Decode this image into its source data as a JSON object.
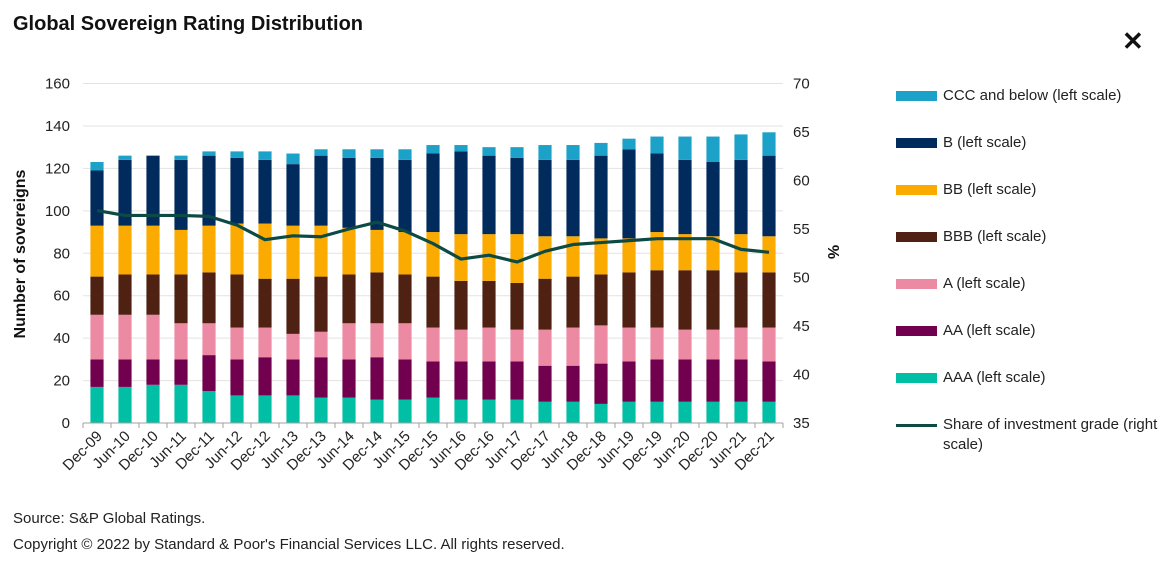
{
  "header": {
    "title": "Global Sovereign Rating Distribution",
    "close_icon": "close-x-icon"
  },
  "footer": {
    "source": "Source: S&P Global Ratings.",
    "copyright": "Copyright © 2022 by Standard & Poor's Financial Services LLC. All rights reserved."
  },
  "chart_data": {
    "type": "bar",
    "subtype": "stacked-bar-with-line",
    "title": "Global Sovereign Rating Distribution",
    "xlabel": "",
    "ylabel": "Number of sovereigns",
    "y2label": "%",
    "ylim": [
      0,
      160
    ],
    "y2lim": [
      35,
      70
    ],
    "yticks": [
      0,
      20,
      40,
      60,
      80,
      100,
      120,
      140,
      160
    ],
    "y2ticks": [
      35,
      40,
      45,
      50,
      55,
      60,
      65,
      70
    ],
    "grid": true,
    "legend_position": "right",
    "categories": [
      "Dec-09",
      "Jun-10",
      "Dec-10",
      "Jun-11",
      "Dec-11",
      "Jun-12",
      "Dec-12",
      "Jun-13",
      "Dec-13",
      "Jun-14",
      "Dec-14",
      "Jun-15",
      "Dec-15",
      "Jun-16",
      "Dec-16",
      "Jun-17",
      "Dec-17",
      "Jun-18",
      "Dec-18",
      "Jun-19",
      "Dec-19",
      "Jun-20",
      "Dec-20",
      "Jun-21",
      "Dec-21"
    ],
    "series": [
      {
        "name": "AAA (left scale)",
        "key": "aaa",
        "color": "#00BFA5",
        "axis": "left",
        "values": [
          17,
          17,
          18,
          18,
          15,
          13,
          13,
          13,
          12,
          12,
          11,
          11,
          12,
          11,
          11,
          11,
          10,
          10,
          9,
          10,
          10,
          10,
          10,
          10,
          10
        ]
      },
      {
        "name": "AA (left scale)",
        "key": "aa",
        "color": "#71004F",
        "axis": "left",
        "values": [
          13,
          13,
          12,
          12,
          17,
          17,
          18,
          17,
          19,
          18,
          20,
          19,
          17,
          18,
          18,
          18,
          17,
          17,
          19,
          19,
          20,
          20,
          20,
          20,
          19
        ]
      },
      {
        "name": "A (left scale)",
        "key": "a",
        "color": "#EC89A3",
        "axis": "left",
        "values": [
          21,
          21,
          21,
          17,
          15,
          15,
          14,
          12,
          12,
          17,
          16,
          17,
          16,
          15,
          16,
          15,
          17,
          18,
          18,
          16,
          15,
          14,
          14,
          15,
          16
        ]
      },
      {
        "name": "BBB (left scale)",
        "key": "bbb",
        "color": "#4F2112",
        "axis": "left",
        "values": [
          18,
          19,
          19,
          23,
          24,
          25,
          23,
          26,
          26,
          23,
          24,
          23,
          24,
          23,
          22,
          22,
          24,
          24,
          24,
          26,
          27,
          28,
          28,
          26,
          26
        ]
      },
      {
        "name": "BB (left scale)",
        "key": "bb",
        "color": "#FBAA00",
        "axis": "left",
        "values": [
          24,
          23,
          23,
          21,
          22,
          24,
          26,
          25,
          24,
          22,
          20,
          20,
          21,
          22,
          22,
          23,
          20,
          19,
          17,
          16,
          18,
          17,
          16,
          18,
          17
        ]
      },
      {
        "name": "B (left scale)",
        "key": "b",
        "color": "#002B5C",
        "axis": "left",
        "values": [
          26,
          31,
          33,
          33,
          33,
          31,
          30,
          29,
          33,
          33,
          34,
          34,
          37,
          39,
          37,
          36,
          36,
          36,
          39,
          42,
          37,
          35,
          35,
          35,
          38
        ]
      },
      {
        "name": "CCC and below (left scale)",
        "key": "ccc",
        "color": "#1CA2C8",
        "axis": "left",
        "values": [
          4,
          2,
          0,
          2,
          2,
          3,
          4,
          5,
          3,
          4,
          4,
          5,
          4,
          3,
          4,
          5,
          7,
          7,
          6,
          5,
          8,
          11,
          12,
          12,
          11
        ]
      },
      {
        "name": "Share of investment grade (right scale)",
        "key": "ig",
        "color": "#0D4A43",
        "axis": "right",
        "type": "line",
        "values": [
          56.9,
          56.4,
          56.4,
          56.4,
          56.3,
          55.4,
          53.9,
          54.3,
          54.2,
          55.0,
          55.7,
          54.8,
          53.5,
          51.9,
          52.3,
          51.6,
          52.7,
          53.4,
          53.6,
          53.8,
          54.0,
          54.0,
          54.0,
          52.9,
          52.6
        ]
      }
    ]
  },
  "legend": {
    "items": [
      {
        "label": "CCC and below (left scale)",
        "color": "#1CA2C8",
        "kind": "bar"
      },
      {
        "label": "B (left scale)",
        "color": "#002B5C",
        "kind": "bar"
      },
      {
        "label": "BB (left scale)",
        "color": "#FBAA00",
        "kind": "bar"
      },
      {
        "label": "BBB (left scale)",
        "color": "#4F2112",
        "kind": "bar"
      },
      {
        "label": "A (left scale)",
        "color": "#EC89A3",
        "kind": "bar"
      },
      {
        "label": "AA (left scale)",
        "color": "#71004F",
        "kind": "bar"
      },
      {
        "label": "AAA (left scale)",
        "color": "#00BFA5",
        "kind": "bar"
      },
      {
        "label": "Share of investment grade (right scale)",
        "color": "#0D4A43",
        "kind": "line"
      }
    ]
  }
}
